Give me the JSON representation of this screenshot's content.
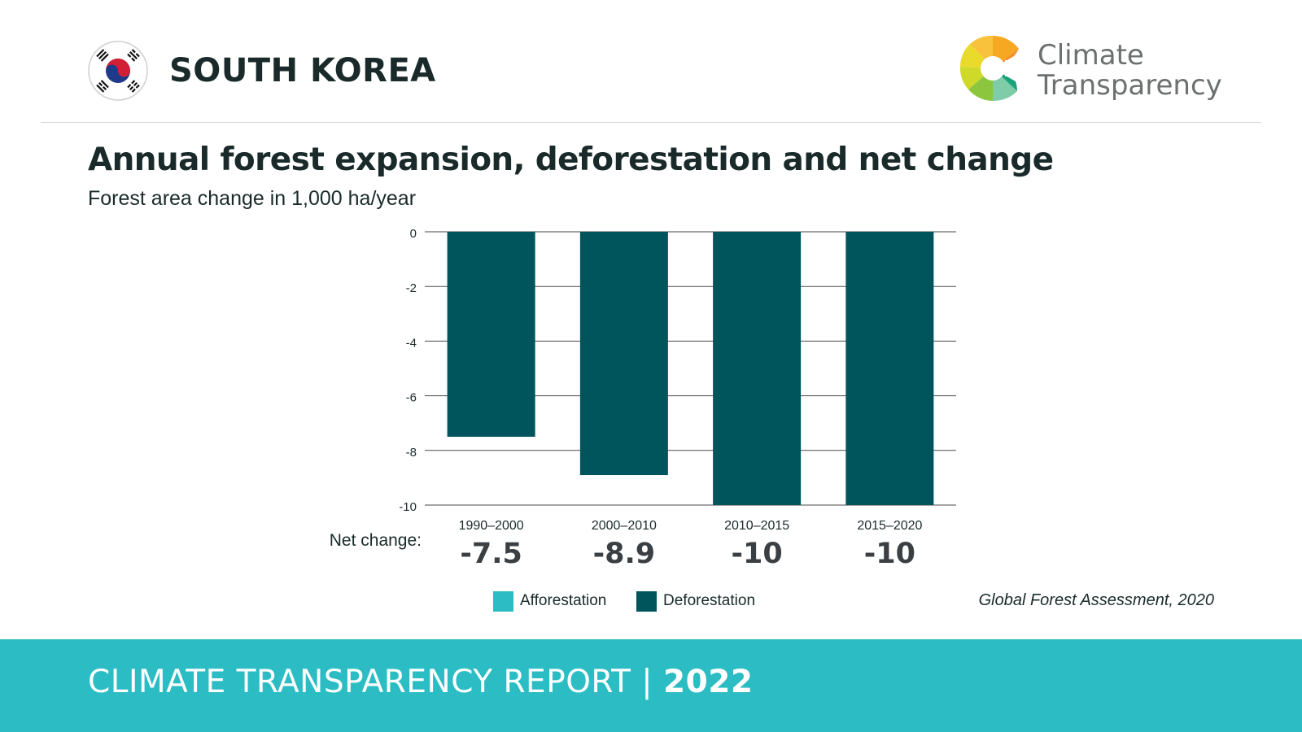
{
  "header": {
    "country": "SOUTH KOREA",
    "logo_line1": "Climate",
    "logo_line2": "Transparency"
  },
  "chart_data": {
    "type": "bar",
    "title": "Annual forest expansion, deforestation and net change",
    "subtitle": "Forest area change in 1,000 ha/year",
    "categories": [
      "1990–2000",
      "2000–2010",
      "2010–2015",
      "2015–2020"
    ],
    "series": [
      {
        "name": "Afforestation",
        "values": [
          0,
          0,
          0,
          0
        ],
        "color": "#2bbcc4"
      },
      {
        "name": "Deforestation",
        "values": [
          -7.5,
          -8.9,
          -10,
          -10
        ],
        "color": "#00545c"
      }
    ],
    "ylim": [
      -10,
      0
    ],
    "yticks": [
      "0",
      "-2",
      "-4",
      "-6",
      "-8",
      "-10"
    ],
    "net_change_label": "Net change:",
    "net_change": [
      "-7.5",
      "-8.9",
      "-10",
      "-10"
    ],
    "grid": true,
    "legend_position": "bottom",
    "source": "Global Forest Assessment, 2020"
  },
  "footer": {
    "report": "CLIMATE TRANSPARENCY REPORT",
    "separator": "|",
    "year": "2022"
  },
  "colors": {
    "accent": "#2bbcc4",
    "deforestation": "#00545c",
    "afforestation": "#2bbcc4"
  }
}
